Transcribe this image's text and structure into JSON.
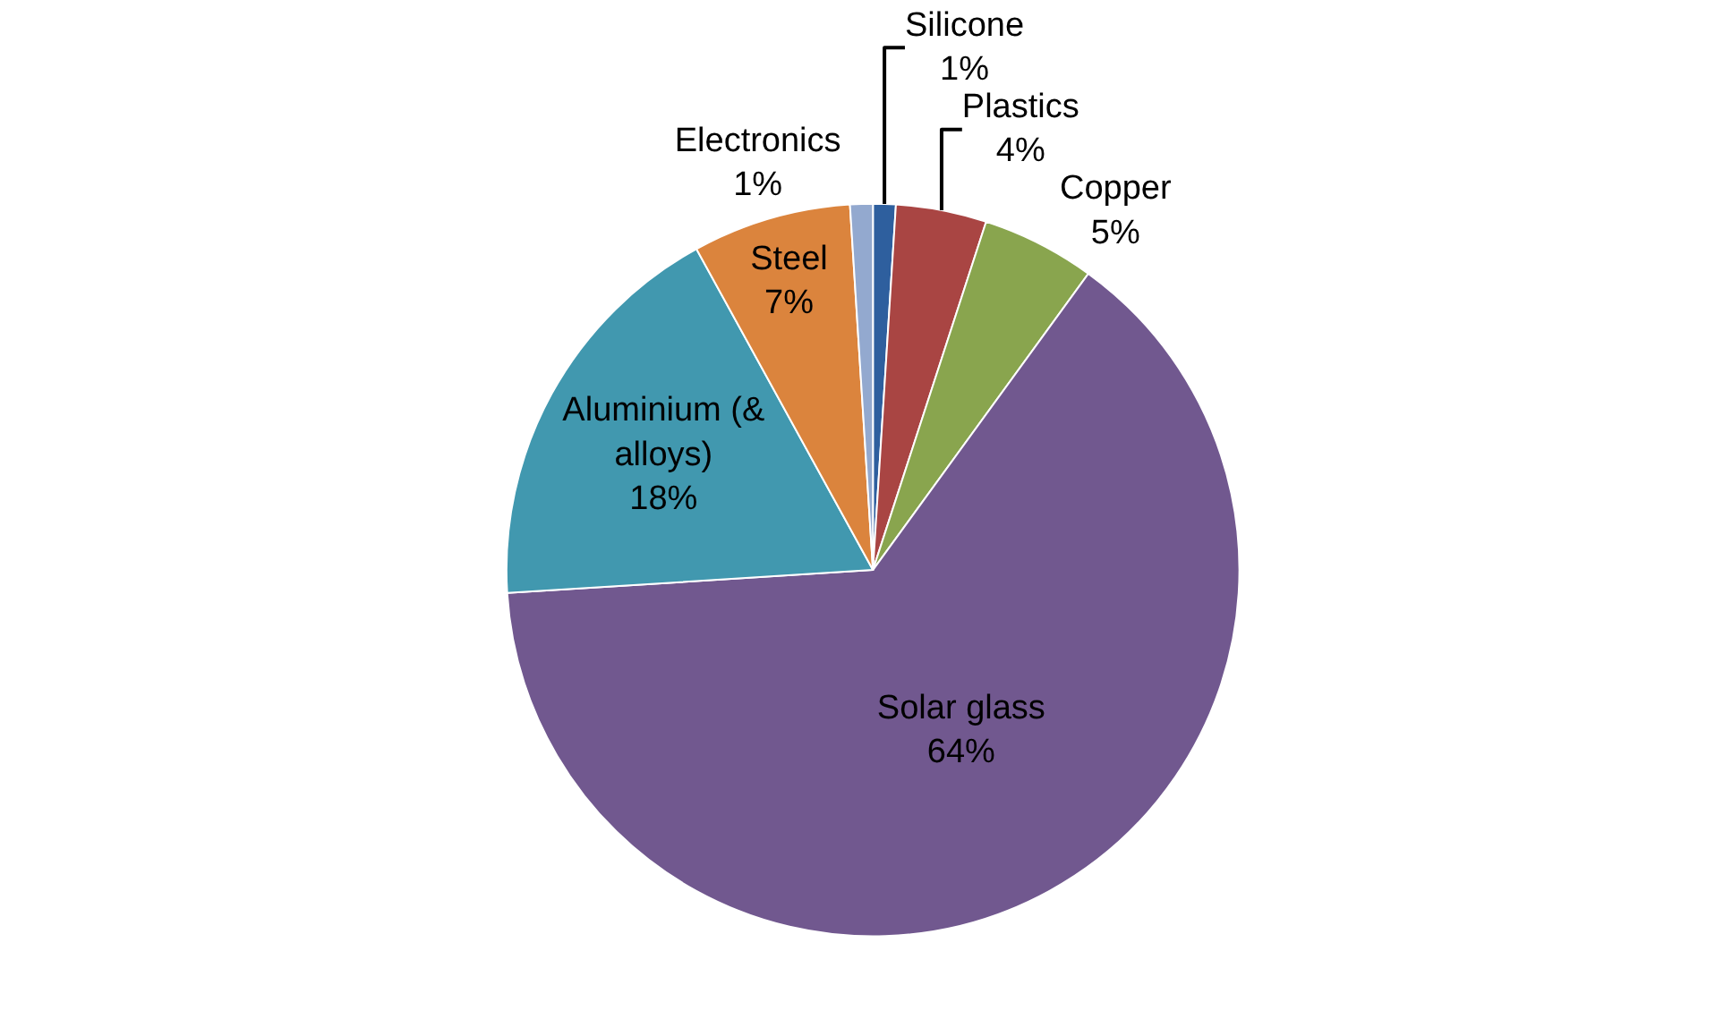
{
  "chart_data": {
    "type": "pie",
    "categories": [
      "Silicone",
      "Plastics",
      "Copper",
      "Solar glass",
      "Aluminium (& alloys)",
      "Steel",
      "Electronics"
    ],
    "values": [
      1,
      4,
      5,
      64,
      18,
      7,
      1
    ],
    "value_labels": [
      "1%",
      "4%",
      "5%",
      "64%",
      "18%",
      "7%",
      "1%"
    ],
    "colors": [
      "#2e5f9e",
      "#a94543",
      "#89a54e",
      "#71588f",
      "#4198af",
      "#db843d",
      "#93a9cf"
    ],
    "legend": false
  }
}
